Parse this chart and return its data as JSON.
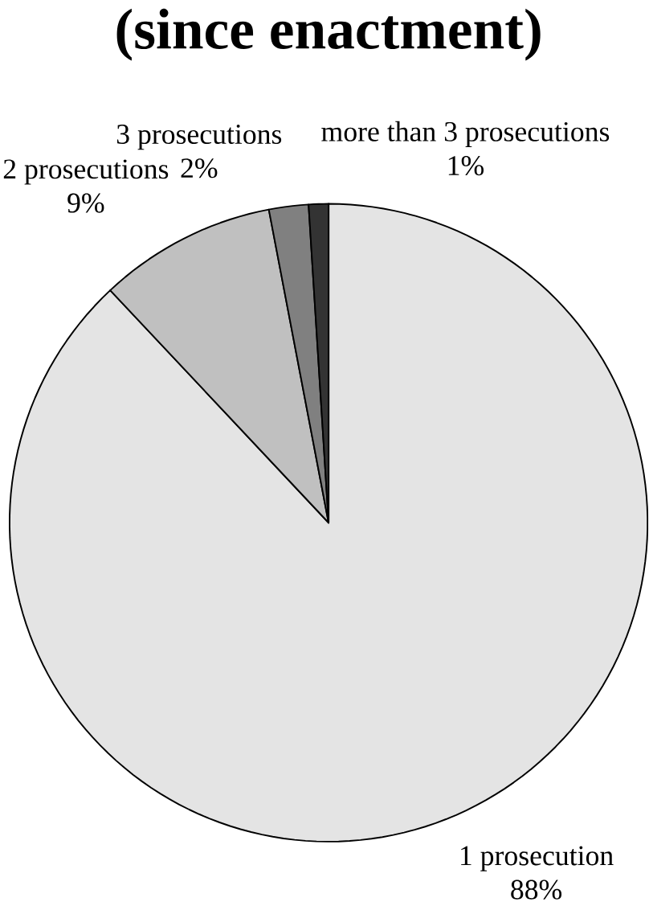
{
  "chart_data": {
    "type": "pie",
    "title": "(since enactment)",
    "categories": [
      "1 prosecution",
      "2 prosecutions",
      "3 prosecutions",
      "more than 3 prosecutions"
    ],
    "values": [
      88,
      9,
      2,
      1
    ],
    "value_labels": [
      "88%",
      "9%",
      "2%",
      "1%"
    ],
    "colors": [
      "#e4e4e4",
      "#c0c0c0",
      "#808080",
      "#333333"
    ]
  }
}
